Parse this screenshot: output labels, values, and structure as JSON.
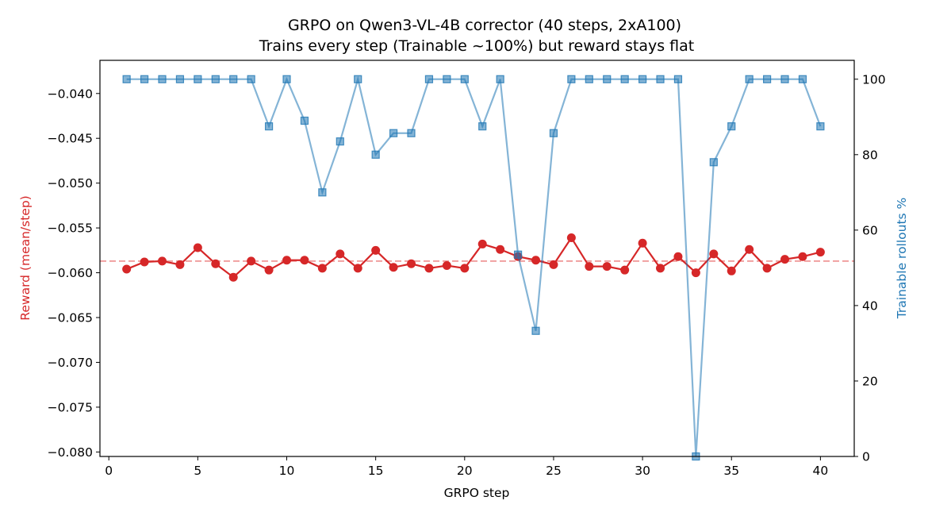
{
  "chart_data": {
    "type": "line",
    "title": "GRPO on Qwen3-VL-4B corrector (40 steps, 2xA100)",
    "subtitle": "Trains every step (Trainable ~100%) but reward stays flat",
    "xlabel": "GRPO step",
    "ylabel_left": "Reward (mean/step)",
    "ylabel_right": "Trainable rollouts %",
    "xlim": [
      -0.5,
      41.9
    ],
    "ylim_left": [
      -0.0805,
      -0.0363
    ],
    "ylim_right": [
      0,
      105
    ],
    "x_ticks": [
      0,
      5,
      10,
      15,
      20,
      25,
      30,
      35,
      40
    ],
    "y_left_ticks": [
      -0.04,
      -0.045,
      -0.05,
      -0.055,
      -0.06,
      -0.065,
      -0.07,
      -0.075,
      -0.08
    ],
    "y_left_tick_labels": [
      "−0.040",
      "−0.045",
      "−0.050",
      "−0.055",
      "−0.060",
      "−0.065",
      "−0.070",
      "−0.075",
      "−0.080"
    ],
    "y_right_ticks": [
      0,
      20,
      40,
      60,
      80,
      100
    ],
    "y_right_tick_labels": [
      "0",
      "20",
      "40",
      "60",
      "80",
      "100"
    ],
    "x": [
      1,
      2,
      3,
      4,
      5,
      6,
      7,
      8,
      9,
      10,
      11,
      12,
      13,
      14,
      15,
      16,
      17,
      18,
      19,
      20,
      21,
      22,
      23,
      24,
      25,
      26,
      27,
      28,
      29,
      30,
      31,
      32,
      33,
      34,
      35,
      36,
      37,
      38,
      39,
      40
    ],
    "series": [
      {
        "axis": "left",
        "color": "#d62728",
        "marker": "circle",
        "values": [
          -0.0596,
          -0.0588,
          -0.0587,
          -0.0591,
          -0.0572,
          -0.059,
          -0.0605,
          -0.0587,
          -0.0597,
          -0.0586,
          -0.0586,
          -0.0595,
          -0.0579,
          -0.0595,
          -0.0575,
          -0.0594,
          -0.059,
          -0.0595,
          -0.0592,
          -0.0595,
          -0.0568,
          -0.0574,
          -0.0582,
          -0.0586,
          -0.0591,
          -0.0561,
          -0.0593,
          -0.0593,
          -0.0597,
          -0.0567,
          -0.0595,
          -0.0582,
          -0.06,
          -0.0579,
          -0.0598,
          -0.0574,
          -0.0595,
          -0.0585,
          -0.0582,
          -0.0577
        ]
      },
      {
        "axis": "right",
        "color": "#1f77b4",
        "marker": "square",
        "values": [
          100,
          100,
          100,
          100,
          100,
          100,
          100,
          100,
          87.5,
          100,
          89,
          70,
          83.5,
          100,
          80,
          85.7,
          85.7,
          100,
          100,
          100,
          87.5,
          100,
          53.5,
          33.3,
          85.7,
          100,
          100,
          100,
          100,
          100,
          100,
          100,
          0,
          78,
          87.5,
          100,
          100,
          100,
          100,
          87.5
        ]
      }
    ],
    "reference_line": {
      "axis": "left",
      "value": -0.0587,
      "color": "#f0a0a0"
    },
    "grid": false
  }
}
